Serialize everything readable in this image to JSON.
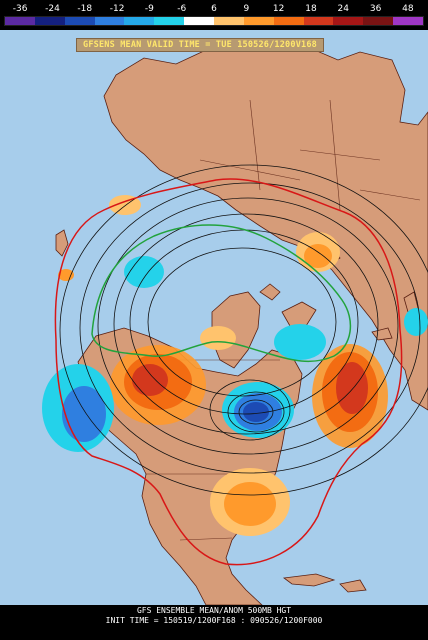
{
  "colorbar": {
    "labels": [
      "-36",
      "-24",
      "-18",
      "-12",
      "-9",
      "-6",
      "6",
      "9",
      "12",
      "18",
      "24",
      "36",
      "48"
    ],
    "colors": [
      "#5b2aa2",
      "#14207f",
      "#1c4bb4",
      "#2f7fe0",
      "#25a9e9",
      "#24d2ea",
      "#ffffff",
      "#ffc36d",
      "#ff9a2c",
      "#f36c12",
      "#d3381d",
      "#a51616",
      "#791313",
      "#9f37c5"
    ]
  },
  "title": "GFSENS MEAN VALID TIME = TUE 150526/1200V168",
  "footer": {
    "line1": "GFS ENSEMBLE MEAN/ANOM 500MB HGT",
    "line2": "INIT TIME = 150519/1200F168 : 090526/1200F000"
  },
  "colors": {
    "ocean": "#a7cdeb",
    "land": "#d69c79",
    "border": "#5a2012",
    "contour": "#111111",
    "red_contour": "#d81717",
    "green_contour": "#22a33c",
    "positive_anomaly": "#f4671d",
    "negative_anomaly": "#24a6e6"
  }
}
